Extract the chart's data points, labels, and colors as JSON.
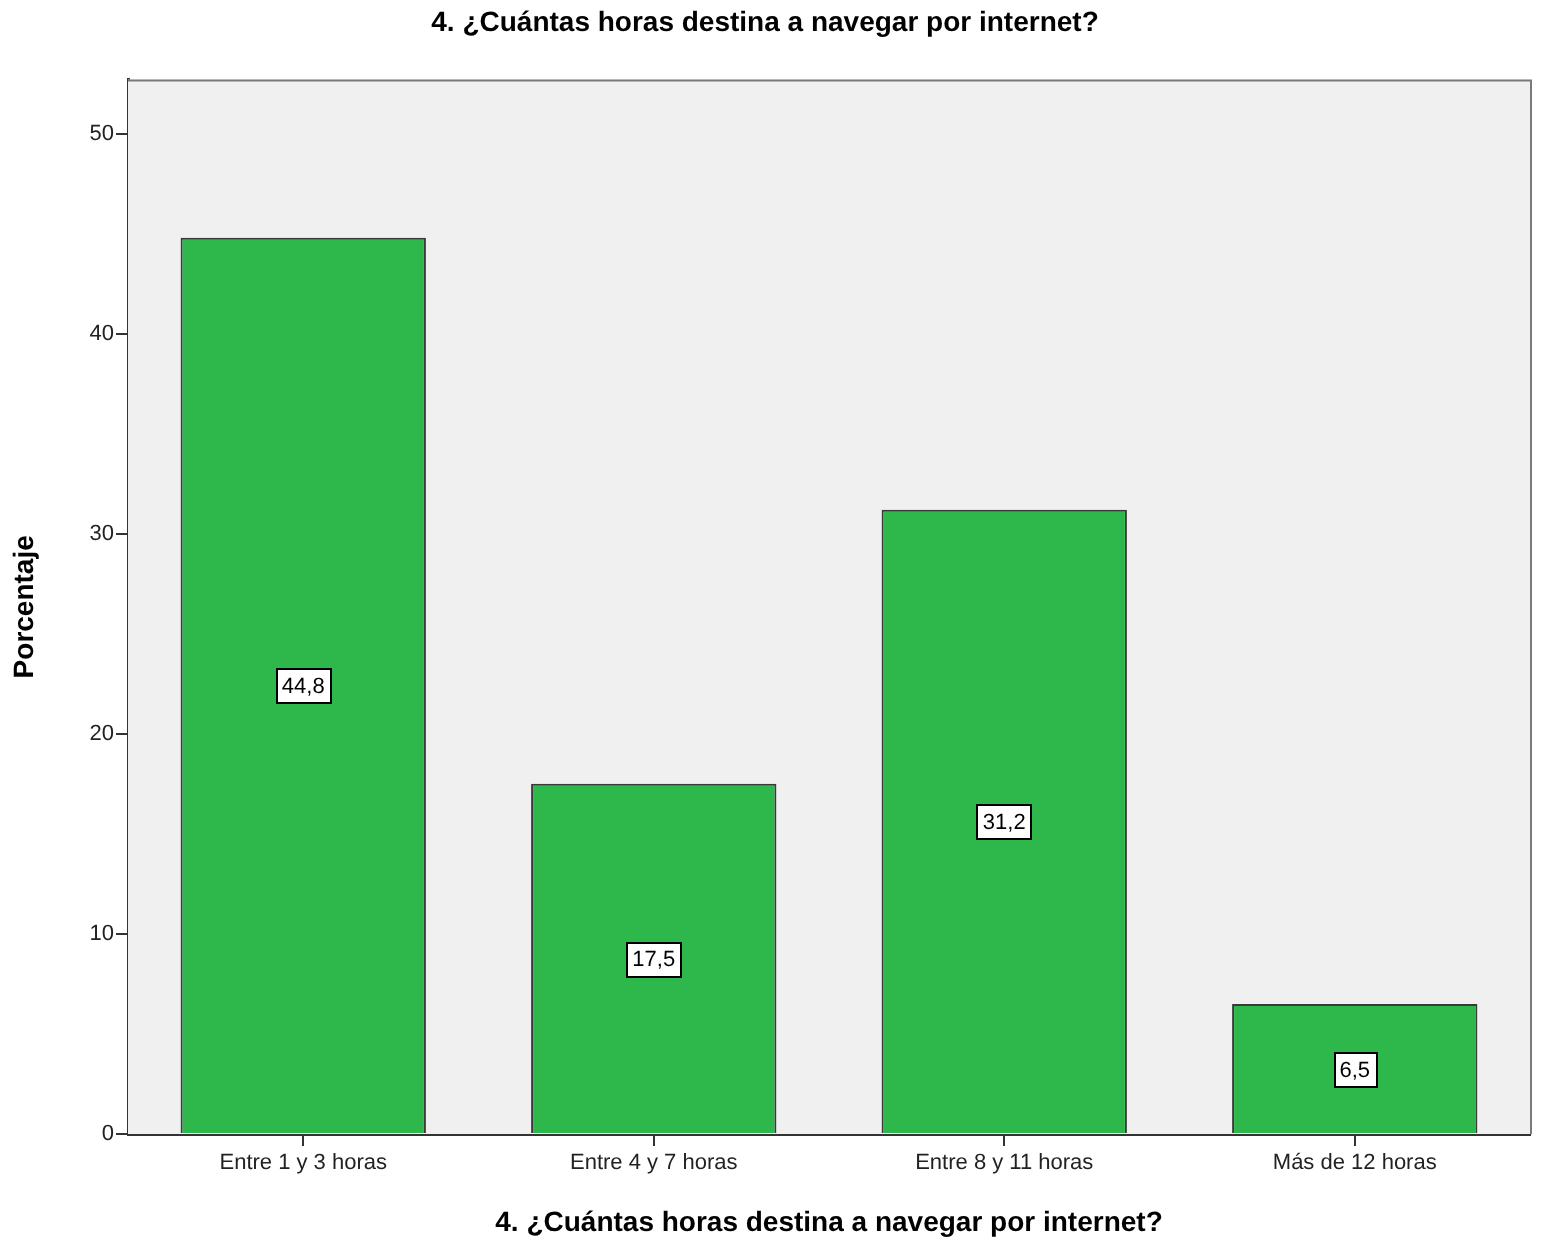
{
  "chart_data": {
    "type": "bar",
    "title": "4. ¿Cuántas horas destina a navegar por internet?",
    "xlabel": "4. ¿Cuántas horas destina a navegar por internet?",
    "ylabel": "Porcentaje",
    "categories": [
      "Entre 1 y 3 horas",
      "Entre 4 y 7 horas",
      "Entre 8 y 11 horas",
      "Más de 12 horas"
    ],
    "values": [
      44.8,
      17.5,
      31.2,
      6.5
    ],
    "value_labels": [
      "44,8",
      "17,5",
      "31,2",
      "6,5"
    ],
    "color": "#2eb84b",
    "ylim": [
      0,
      52.7
    ],
    "yticks": [
      0,
      10,
      20,
      30,
      40,
      50
    ]
  }
}
